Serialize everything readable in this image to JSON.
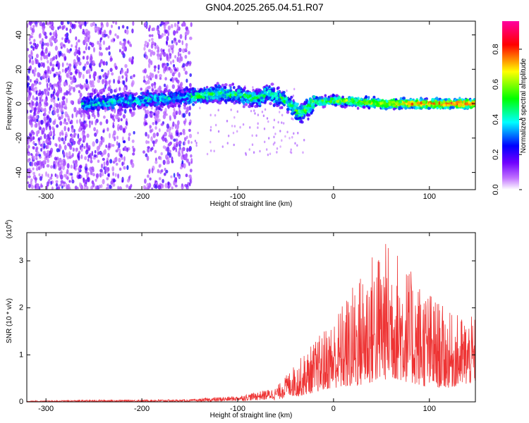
{
  "title": "GN04.2025.265.04.51.R07",
  "chart_data": [
    {
      "type": "heatmap",
      "xlabel": "Height of straight line (km)",
      "ylabel": "Frequency (Hz)",
      "xlim": [
        -320,
        148
      ],
      "ylim": [
        -50,
        48
      ],
      "xticks": [
        -300,
        -200,
        -100,
        0,
        100
      ],
      "yticks": [
        -40,
        -20,
        0,
        20,
        40
      ],
      "colorbar": {
        "label": "Normalized spectral amplitude",
        "range": [
          0,
          0.96
        ],
        "ticks": [
          "0.0",
          "0.2",
          "0.4",
          "0.6",
          "0.8"
        ],
        "colors": [
          "#ffffff",
          "#b000ff",
          "#0000ff",
          "#00ffff",
          "#00ff00",
          "#ffff00",
          "#ff0000",
          "#ff00ff"
        ]
      },
      "ridge": {
        "description_points_x": [
          -255,
          -200,
          -150,
          -120,
          -100,
          -80,
          -70,
          -50,
          -35,
          -20,
          0,
          50,
          100,
          148
        ],
        "freq": [
          0,
          2,
          4,
          6,
          5,
          3,
          6,
          2,
          -6,
          1,
          2,
          0,
          0,
          0
        ]
      }
    },
    {
      "type": "line",
      "xlabel": "Height of straight line (km)",
      "ylabel": "SNR (10 * v/v)",
      "y_multiplier": "(x10",
      "y_multiplier_exp": "4",
      "xlim": [
        -320,
        148
      ],
      "ylim": [
        0,
        3.6
      ],
      "xticks": [
        -300,
        -200,
        -100,
        0,
        100
      ],
      "yticks": [
        0,
        1,
        2,
        3
      ],
      "color": "#ee3333",
      "envelope": {
        "x": [
          -320,
          -250,
          -150,
          -120,
          -100,
          -60,
          -40,
          -20,
          0,
          20,
          40,
          60,
          80,
          100,
          120,
          148
        ],
        "max": [
          0.02,
          0.04,
          0.05,
          0.1,
          0.12,
          0.3,
          0.8,
          1.3,
          1.8,
          2.5,
          3.2,
          3.5,
          2.8,
          2.4,
          1.9,
          1.8
        ],
        "min": [
          0.0,
          0.0,
          0.0,
          0.0,
          0.02,
          0.04,
          0.1,
          0.2,
          0.3,
          0.3,
          0.4,
          0.5,
          0.4,
          0.3,
          0.3,
          0.4
        ]
      }
    }
  ]
}
